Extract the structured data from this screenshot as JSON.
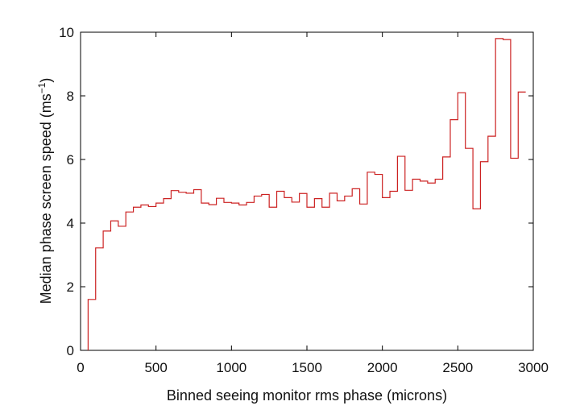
{
  "chart_data": {
    "type": "line",
    "style": "step",
    "xlabel": "Binned seeing monitor rms phase (microns)",
    "ylabel": "Median phase screen speed (ms",
    "ylabel_sup": "−1",
    "ylabel_close": ")",
    "xlim": [
      0,
      3000
    ],
    "ylim": [
      0,
      10
    ],
    "xticks": [
      0,
      500,
      1000,
      1500,
      2000,
      2500,
      3000
    ],
    "yticks": [
      0,
      2,
      4,
      6,
      8,
      10
    ],
    "grid": false,
    "line_color": "#cc2222",
    "bin_width": 50,
    "bin_edges_start": 50,
    "values": [
      1.6,
      3.22,
      3.75,
      4.07,
      3.9,
      4.35,
      4.5,
      4.57,
      4.52,
      4.63,
      4.77,
      5.02,
      4.97,
      4.94,
      5.05,
      4.63,
      4.58,
      4.78,
      4.65,
      4.63,
      4.57,
      4.65,
      4.85,
      4.9,
      4.5,
      5.0,
      4.8,
      4.66,
      4.93,
      4.5,
      4.77,
      4.5,
      4.94,
      4.7,
      4.85,
      5.08,
      4.6,
      5.6,
      5.53,
      4.8,
      5.0,
      6.1,
      5.03,
      5.38,
      5.32,
      5.26,
      5.38,
      6.08,
      7.25,
      8.1,
      6.35,
      4.45,
      5.93,
      6.73,
      9.8,
      9.77,
      6.04,
      8.12
    ]
  }
}
